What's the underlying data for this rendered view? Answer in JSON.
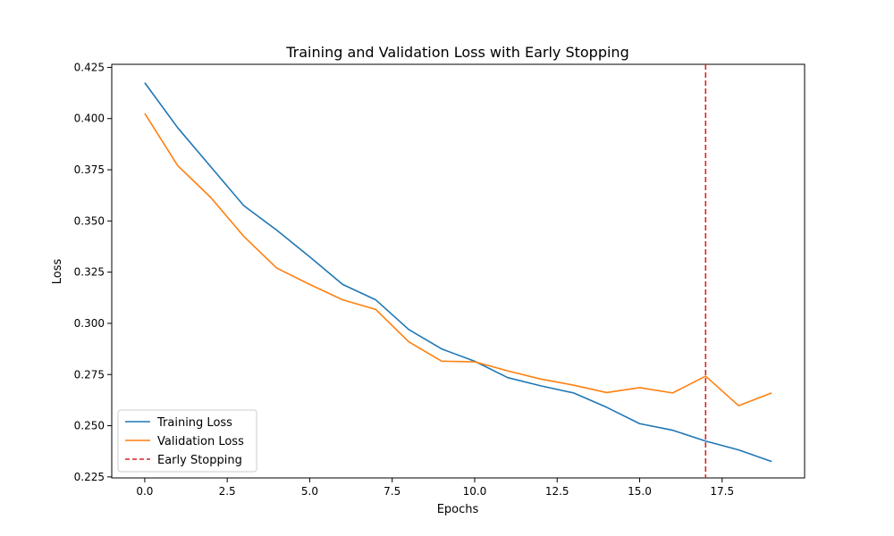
{
  "chart_data": {
    "type": "line",
    "title": "Training and Validation Loss with Early Stopping",
    "xlabel": "Epochs",
    "ylabel": "Loss",
    "xlim": [
      -1,
      20
    ],
    "ylim": [
      0.2245,
      0.4265
    ],
    "xticks": [
      0.0,
      2.5,
      5.0,
      7.5,
      10.0,
      12.5,
      15.0,
      17.5
    ],
    "xtick_labels": [
      "0.0",
      "2.5",
      "5.0",
      "7.5",
      "10.0",
      "12.5",
      "15.0",
      "17.5"
    ],
    "yticks": [
      0.225,
      0.25,
      0.275,
      0.3,
      0.325,
      0.35,
      0.375,
      0.4,
      0.425
    ],
    "ytick_labels": [
      "0.225",
      "0.250",
      "0.275",
      "0.300",
      "0.325",
      "0.350",
      "0.375",
      "0.400",
      "0.425"
    ],
    "grid": false,
    "legend_position": "lower-left",
    "x": [
      0,
      1,
      2,
      3,
      4,
      5,
      6,
      7,
      8,
      9,
      10,
      11,
      12,
      13,
      14,
      15,
      16,
      17,
      18,
      19
    ],
    "series": [
      {
        "name": "Training Loss",
        "color": "#1f77b4",
        "values": [
          0.4175,
          0.3955,
          0.3765,
          0.3575,
          0.3455,
          0.3325,
          0.319,
          0.3115,
          0.297,
          0.2875,
          0.2815,
          0.2735,
          0.2695,
          0.266,
          0.259,
          0.251,
          0.2478,
          0.2425,
          0.2382,
          0.2325
        ]
      },
      {
        "name": "Validation Loss",
        "color": "#ff7f0e",
        "values": [
          0.4025,
          0.377,
          0.3615,
          0.3425,
          0.327,
          0.319,
          0.3115,
          0.3068,
          0.291,
          0.2815,
          0.2812,
          0.2768,
          0.2728,
          0.2698,
          0.2662,
          0.2686,
          0.266,
          0.2742,
          0.2598,
          0.266
        ]
      }
    ],
    "vline": {
      "name": "Early Stopping",
      "x": 17,
      "color": "#d62728",
      "style": "dashed"
    }
  }
}
